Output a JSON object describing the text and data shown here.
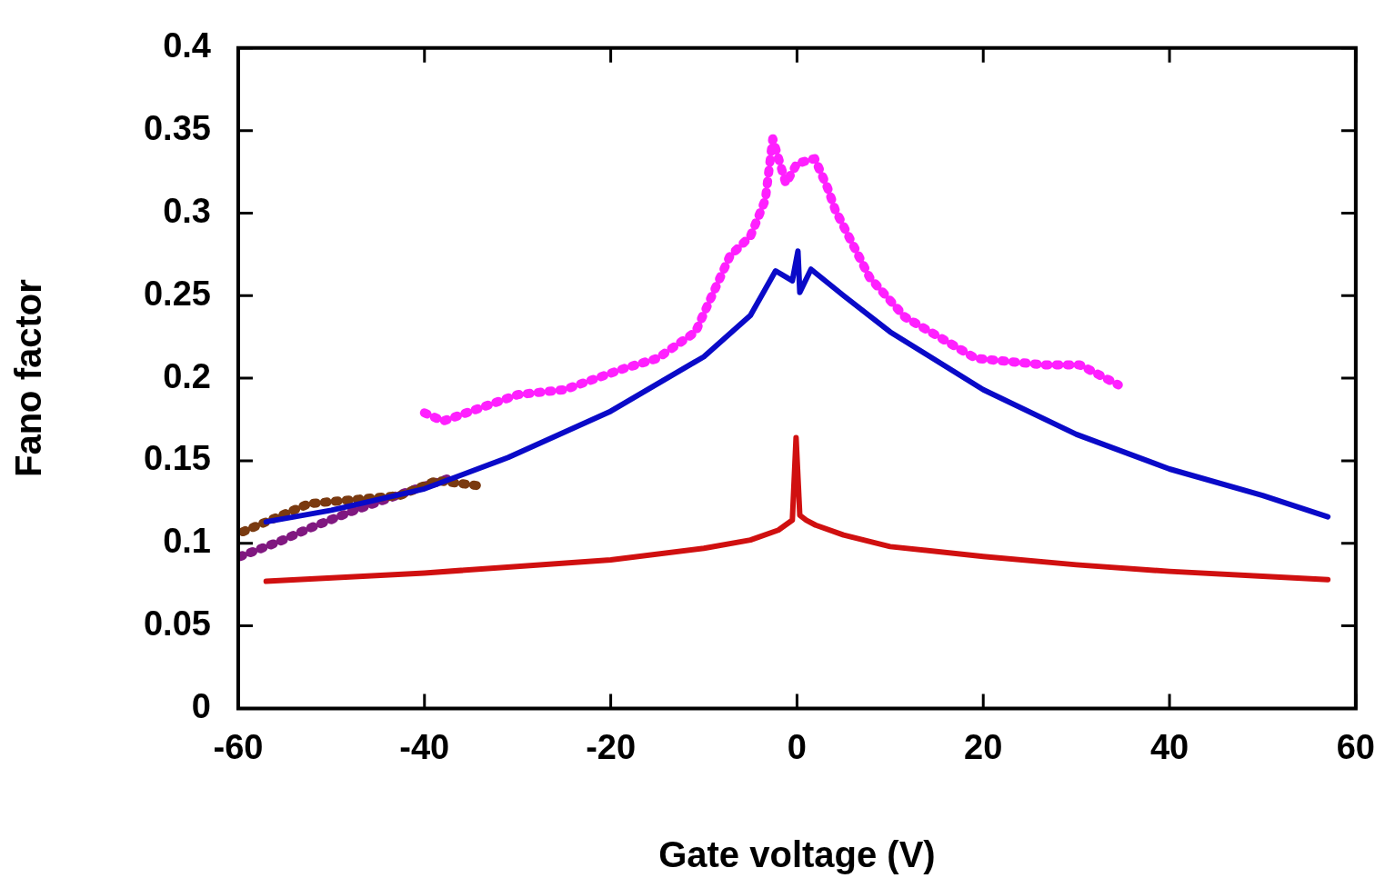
{
  "chart_data": {
    "type": "line",
    "xlabel": "Gate voltage (V)",
    "ylabel": "Fano factor",
    "xlim": [
      -60,
      60
    ],
    "xticks": [
      -60,
      -40,
      -20,
      0,
      20,
      40,
      60
    ],
    "ylim": [
      0,
      0.4
    ],
    "yticks": [
      0,
      0.05,
      0.1,
      0.15,
      0.2,
      0.25,
      0.3,
      0.35,
      0.4
    ],
    "grid": false,
    "legend": false,
    "marker": "none",
    "series": [
      {
        "color": "#d01010",
        "line_style": "solid",
        "x": [
          -57,
          -40,
          -20,
          -10,
          -5,
          -2,
          -0.5,
          -0.1,
          0.3,
          1,
          2,
          5,
          10,
          20,
          30,
          40,
          50,
          57
        ],
        "values": [
          0.077,
          0.082,
          0.09,
          0.097,
          0.102,
          0.108,
          0.114,
          0.164,
          0.117,
          0.114,
          0.111,
          0.105,
          0.098,
          0.092,
          0.087,
          0.083,
          0.08,
          0.078
        ]
      },
      {
        "color": "#0a0ac8",
        "line_style": "solid",
        "x": [
          -57,
          -50,
          -40,
          -31,
          -20,
          -10,
          -5,
          -2.3,
          -0.5,
          0.1,
          0.3,
          1.5,
          5,
          10,
          20,
          30,
          40,
          50,
          57
        ],
        "values": [
          0.113,
          0.12,
          0.133,
          0.152,
          0.18,
          0.213,
          0.238,
          0.265,
          0.259,
          0.277,
          0.252,
          0.266,
          0.25,
          0.228,
          0.193,
          0.166,
          0.145,
          0.129,
          0.116
        ]
      },
      {
        "color": "#ff20ff",
        "line_style": "dotted",
        "x": [
          -40,
          -38,
          -30,
          -25,
          -18.5,
          -15,
          -10.9,
          -7.2,
          -5,
          -3.4,
          -2.6,
          -1.2,
          0,
          1.9,
          3.3,
          4.1,
          7.8,
          11.6,
          19.2,
          26.7,
          30.4,
          34.5
        ],
        "values": [
          0.179,
          0.174,
          0.19,
          0.193,
          0.206,
          0.212,
          0.228,
          0.274,
          0.286,
          0.308,
          0.345,
          0.318,
          0.33,
          0.333,
          0.315,
          0.302,
          0.261,
          0.237,
          0.212,
          0.208,
          0.208,
          0.196
        ]
      },
      {
        "color": "#7a3a10",
        "line_style": "dotted",
        "x": [
          -59.5,
          -52.4,
          -42.6,
          -38.7,
          -34.4
        ],
        "values": [
          0.107,
          0.124,
          0.129,
          0.138,
          0.135
        ]
      },
      {
        "color": "#801880",
        "line_style": "dotted",
        "x": [
          -59.8,
          -55.6,
          -52.4,
          -47.5,
          -40.9,
          -37
        ],
        "values": [
          0.092,
          0.101,
          0.109,
          0.12,
          0.133,
          0.14
        ]
      }
    ]
  }
}
